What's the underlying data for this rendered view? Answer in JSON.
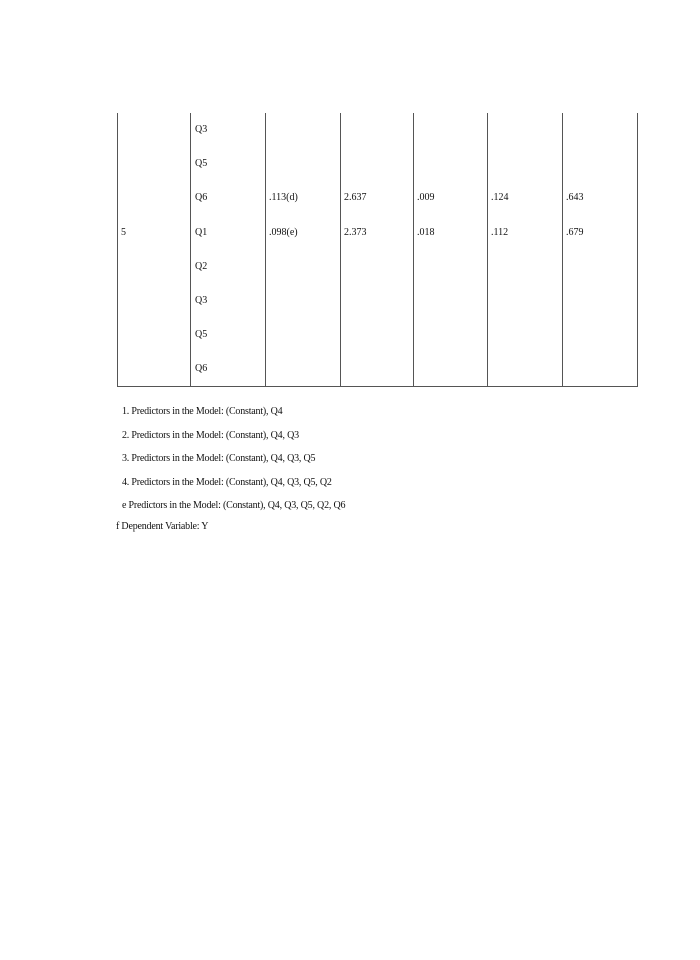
{
  "table": {
    "rows": [
      {
        "model": "",
        "var": "Q3",
        "beta_in": "",
        "t": "",
        "sig": "",
        "partial": "",
        "tolerance": ""
      },
      {
        "model": "",
        "var": "Q5",
        "beta_in": "",
        "t": "",
        "sig": "",
        "partial": "",
        "tolerance": ""
      },
      {
        "model": "",
        "var": "Q6",
        "beta_in": ".113(d)",
        "t": "2.637",
        "sig": ".009",
        "partial": ".124",
        "tolerance": ".643"
      },
      {
        "model": "5",
        "var": "Q1",
        "beta_in": ".098(e)",
        "t": "2.373",
        "sig": ".018",
        "partial": ".112",
        "tolerance": ".679"
      },
      {
        "model": "",
        "var": "Q2",
        "beta_in": "",
        "t": "",
        "sig": "",
        "partial": "",
        "tolerance": ""
      },
      {
        "model": "",
        "var": "Q3",
        "beta_in": "",
        "t": "",
        "sig": "",
        "partial": "",
        "tolerance": ""
      },
      {
        "model": "",
        "var": "Q5",
        "beta_in": "",
        "t": "",
        "sig": "",
        "partial": "",
        "tolerance": ""
      },
      {
        "model": "",
        "var": "Q6",
        "beta_in": "",
        "t": "",
        "sig": "",
        "partial": "",
        "tolerance": ""
      }
    ]
  },
  "notes": [
    "1. Predictors in the Model: (Constant), Q4",
    "2. Predictors in the Model: (Constant), Q4, Q3",
    "3. Predictors in the Model: (Constant), Q4, Q3, Q5",
    "4. Predictors in the Model: (Constant), Q4, Q3, Q5, Q2",
    "e Predictors in the Model: (Constant), Q4, Q3, Q5, Q2, Q6"
  ],
  "dependent": "f  Dependent Variable: Y"
}
